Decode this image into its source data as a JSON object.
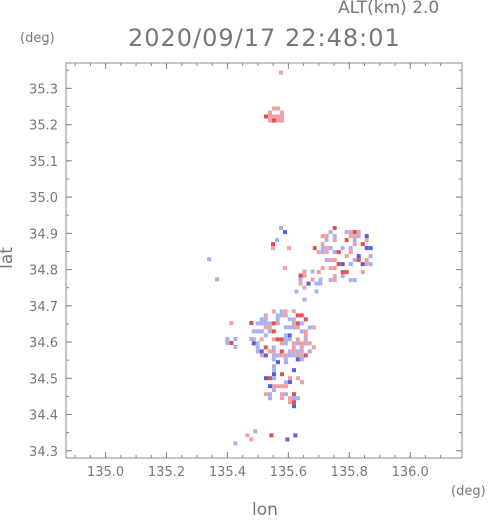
{
  "header": {
    "altitude_label": "ALT(km) 2.0",
    "timestamp": "2020/09/17 22:48:01"
  },
  "chart_data": {
    "type": "scatter",
    "title": "2020/09/17 22:48:01",
    "xlabel": "lon",
    "ylabel": "lat",
    "x_unit": "(deg)",
    "y_unit": "(deg)",
    "xlim": [
      134.87,
      136.17
    ],
    "ylim": [
      34.28,
      35.37
    ],
    "grid": false,
    "x_ticks": [
      "135.0",
      "135.2",
      "135.4",
      "135.6",
      "135.8",
      "136.0"
    ],
    "y_ticks": [
      "34.3",
      "34.4",
      "34.5",
      "34.6",
      "34.7",
      "34.8",
      "34.9",
      "35.0",
      "35.1",
      "35.2",
      "35.3"
    ],
    "colors": {
      "positive": "#f0a0a0",
      "strong_positive": "#e05050",
      "negative": "#a8b0f0",
      "strong_negative": "#5060e0",
      "axis": "#888888"
    },
    "clusters": [
      {
        "name": "north-small",
        "lon": [
          135.53,
          135.58
        ],
        "lat": [
          35.33,
          35.36
        ],
        "density": 0.25,
        "mix": 0.9
      },
      {
        "name": "north-blob",
        "lon": [
          135.52,
          135.58
        ],
        "lat": [
          35.21,
          35.25
        ],
        "density": 0.9,
        "mix": 1.0
      },
      {
        "name": "main-upper",
        "lon": [
          135.53,
          135.62
        ],
        "lat": [
          34.79,
          34.92
        ],
        "density": 0.12,
        "mix": 0.5
      },
      {
        "name": "east-arm",
        "lon": [
          135.68,
          135.87
        ],
        "lat": [
          34.77,
          34.92
        ],
        "density": 0.45,
        "mix": 0.5
      },
      {
        "name": "east-link",
        "lon": [
          135.62,
          135.7
        ],
        "lat": [
          34.72,
          34.8
        ],
        "density": 0.35,
        "mix": 0.5
      },
      {
        "name": "main-body",
        "lon": [
          135.48,
          135.68
        ],
        "lat": [
          34.55,
          34.69
        ],
        "density": 0.62,
        "mix": 0.5
      },
      {
        "name": "main-lower",
        "lon": [
          135.52,
          135.64
        ],
        "lat": [
          34.42,
          34.55
        ],
        "density": 0.55,
        "mix": 0.5
      },
      {
        "name": "west-edge",
        "lon": [
          135.38,
          135.48
        ],
        "lat": [
          34.59,
          34.68
        ],
        "density": 0.2,
        "mix": 0.5
      },
      {
        "name": "west-dots",
        "lon": [
          135.32,
          135.38
        ],
        "lat": [
          34.77,
          34.9
        ],
        "density": 0.05,
        "mix": 0.5
      },
      {
        "name": "south-tail",
        "lon": [
          135.38,
          135.62
        ],
        "lat": [
          34.32,
          34.37
        ],
        "density": 0.12,
        "mix": 0.5
      }
    ]
  }
}
